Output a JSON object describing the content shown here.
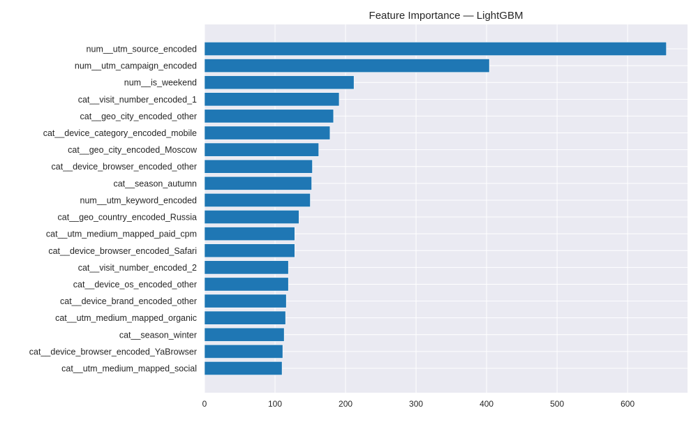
{
  "chart_data": {
    "type": "bar",
    "orientation": "horizontal",
    "title": "Feature Importance — LightGBM",
    "xlabel": "",
    "ylabel": "",
    "xlim": [
      0,
      685
    ],
    "xticks": [
      0,
      100,
      200,
      300,
      400,
      500,
      600
    ],
    "grid": true,
    "legend": "none",
    "categories": [
      "num__utm_source_encoded",
      "num__utm_campaign_encoded",
      "num__is_weekend",
      "cat__visit_number_encoded_1",
      "cat__geo_city_encoded_other",
      "cat__device_category_encoded_mobile",
      "cat__geo_city_encoded_Moscow",
      "cat__device_browser_encoded_other",
      "cat__season_autumn",
      "num__utm_keyword_encoded",
      "cat__geo_country_encoded_Russia",
      "cat__utm_medium_mapped_paid_cpm",
      "cat__device_browser_encoded_Safari",
      "cat__visit_number_encoded_2",
      "cat__device_os_encoded_other",
      "cat__device_brand_encoded_other",
      "cat__utm_medium_mapped_organic",
      "cat__season_winter",
      "cat__device_browser_encoded_YaBrowser",
      "cat__utm_medium_mapped_social"
    ],
    "values": [
      655,
      404,
      212,
      191,
      183,
      178,
      162,
      153,
      152,
      150,
      134,
      128,
      128,
      119,
      119,
      116,
      115,
      113,
      111,
      110
    ],
    "colors": {
      "bar": "#1f77b4",
      "plot_bg": "#eaeaf2",
      "grid": "#ffffff",
      "text": "#262626"
    }
  }
}
